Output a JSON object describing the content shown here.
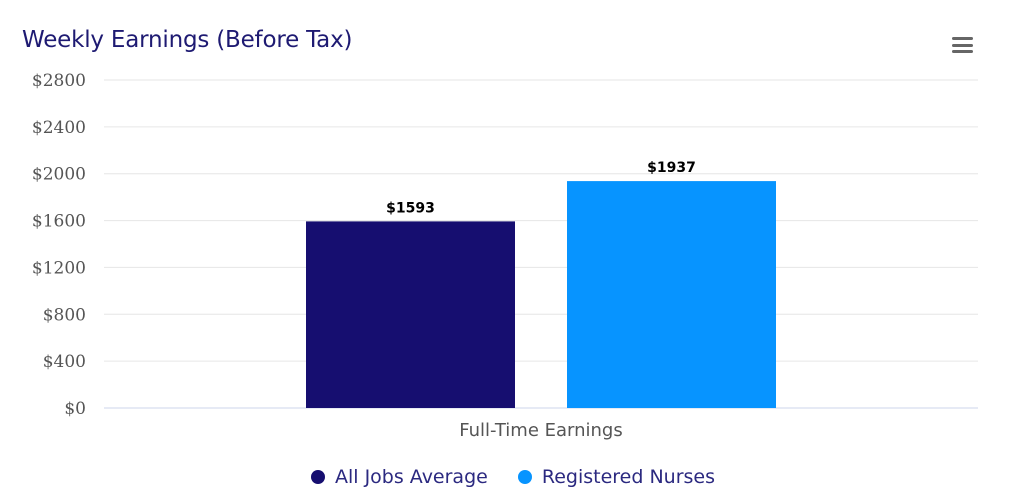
{
  "chart_data": {
    "type": "bar",
    "title": "Weekly Earnings (Before Tax)",
    "categories": [
      "Full-Time Earnings"
    ],
    "series": [
      {
        "name": "All Jobs Average",
        "values": [
          1593
        ],
        "color": "#160e70",
        "label": "$1593"
      },
      {
        "name": "Registered Nurses",
        "values": [
          1937
        ],
        "color": "#0794ff",
        "label": "$1937"
      }
    ],
    "ylim": [
      0,
      2800
    ],
    "y_ticks": [
      "$0",
      "$400",
      "$800",
      "$1200",
      "$1600",
      "$2000",
      "$2400",
      "$2800"
    ],
    "grid": true,
    "legend": "bottom-center",
    "menu_icon": "hamburger-menu-icon"
  }
}
